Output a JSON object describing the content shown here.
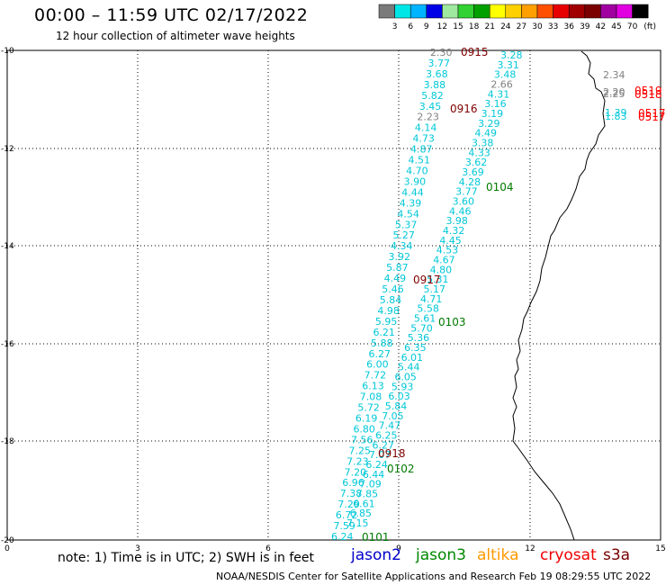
{
  "header": {
    "title": "00:00 – 11:59 UTC 02/17/2022",
    "subtitle": "12 hour collection of altimeter wave heights"
  },
  "legend": {
    "unit": "(ft)",
    "labels": [
      "3",
      "6",
      "9",
      "12",
      "15",
      "18",
      "21",
      "24",
      "27",
      "30",
      "33",
      "36",
      "39",
      "42",
      "45",
      "70"
    ],
    "colors": [
      "#7a7a7a",
      "#00e6e6",
      "#00b4ff",
      "#0000e6",
      "#9fe89f",
      "#32d232",
      "#00a000",
      "#ffff00",
      "#ffd000",
      "#ffa000",
      "#ff5000",
      "#e60000",
      "#a00000",
      "#7a0000",
      "#a000a0",
      "#e000e0",
      "#000000"
    ]
  },
  "axes": {
    "x_ticks": [
      "0",
      "3",
      "6",
      "9",
      "12",
      "15"
    ],
    "y_ticks": [
      "-10",
      "-12",
      "-14",
      "-16",
      "-18",
      "-20"
    ]
  },
  "notes": "note: 1) Time is in UTC; 2) SWH is in feet",
  "satellites": [
    {
      "name": "jason2",
      "color": "#0000cc"
    },
    {
      "name": "jason3",
      "color": "#008800"
    },
    {
      "name": "altika",
      "color": "#ff9900"
    },
    {
      "name": "cryosat",
      "color": "#ee0000"
    },
    {
      "name": "s3a",
      "color": "#770000"
    }
  ],
  "credit": "NOAA/NESDIS Center for Satellite Applications and Research    Feb 19 08:29:55 UTC 2022",
  "colors": {
    "cyan": "#00c8d8",
    "gray": "#808080",
    "darkred": "#800000",
    "green": "#007a00",
    "red": "#ff0000"
  },
  "track_a_labels": [
    "2.30",
    "3.77",
    "3.68",
    "3.88",
    "5.82",
    "3.45",
    "2.23",
    "4.14",
    "4.73",
    "4.87",
    "4.51",
    "4.70",
    "3.90",
    "4.44",
    "4.39",
    "4.54",
    "5.37",
    "5.27",
    "4.34",
    "3.92",
    "5.87",
    "4.49",
    "5.46",
    "5.84",
    "4.98",
    "5.95",
    "6.21",
    "5.88",
    "6.27",
    "6.00",
    "7.72",
    "6.13",
    "7.08",
    "5.72",
    "6.19",
    "6.80",
    "7.56",
    "7.25",
    "7.23",
    "7.20",
    "6.96",
    "7.38",
    "7.29",
    "6.72",
    "7.59",
    "6.24"
  ],
  "track_b_labels": [
    "3.28",
    "3.31",
    "3.48",
    "2.66",
    "4.31",
    "3.16",
    "3.19",
    "3.29",
    "4.49",
    "3.38",
    "4.33",
    "3.62",
    "3.69",
    "4.28",
    "3.77",
    "3.60",
    "4.46",
    "3.98",
    "4.32",
    "4.45",
    "4.53",
    "4.67",
    "4.80",
    "5.31",
    "5.17",
    "4.71",
    "5.58",
    "5.61",
    "5.70",
    "5.36",
    "6.35",
    "6.01",
    "5.44",
    "6.05",
    "5.93",
    "6.03",
    "5.84",
    "7.05",
    "7.47",
    "6.25",
    "6.27",
    "7.07",
    "6.24",
    "6.44",
    "7.09",
    "7.85",
    "6.61",
    "6.85",
    "7.15"
  ],
  "pass_times": [
    {
      "text": "0915",
      "color": "darkred"
    },
    {
      "text": "0916",
      "color": "darkred"
    },
    {
      "text": "0104",
      "color": "green"
    },
    {
      "text": "0917",
      "color": "darkred"
    },
    {
      "text": "0103",
      "color": "green"
    },
    {
      "text": "0918",
      "color": "darkred"
    },
    {
      "text": "0102",
      "color": "green"
    },
    {
      "text": "0101",
      "color": "green"
    }
  ],
  "coastal_labels": [
    {
      "text": "2.34",
      "color": "gray"
    },
    {
      "text": "2.20",
      "color": "gray"
    },
    {
      "text": "2.25",
      "color": "gray"
    },
    {
      "text": "0519",
      "color": "red"
    },
    {
      "text": "0518",
      "color": "red"
    },
    {
      "text": "1.39",
      "color": "cyan"
    },
    {
      "text": "1.83",
      "color": "cyan"
    },
    {
      "text": "0517",
      "color": "red"
    },
    {
      "text": "0517",
      "color": "red"
    }
  ]
}
